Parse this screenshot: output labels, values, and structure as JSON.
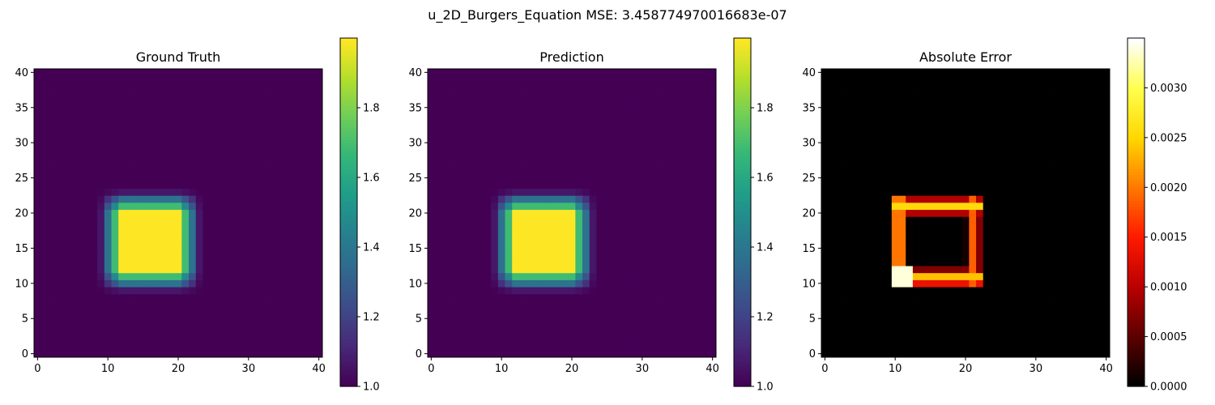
{
  "figure": {
    "suptitle": "u_2D_Burgers_Equation MSE: 3.458774970016683e-07"
  },
  "chart_data": [
    {
      "type": "heatmap",
      "title": "Ground Truth",
      "grid_size": 41,
      "origin": "lower",
      "colormap": "viridis",
      "vmin": 1.0,
      "vmax": 2.0,
      "background_value": 1.0,
      "plateau": {
        "x_range": [
          12,
          20
        ],
        "y_range": [
          12,
          20
        ],
        "value": 2.0
      },
      "ramp_width": 2,
      "x_ticks": [
        0,
        10,
        20,
        30,
        40
      ],
      "y_ticks": [
        0,
        5,
        10,
        15,
        20,
        25,
        30,
        35,
        40
      ],
      "colorbar_ticks": [
        "1.0",
        "1.2",
        "1.4",
        "1.6",
        "1.8"
      ]
    },
    {
      "type": "heatmap",
      "title": "Prediction",
      "grid_size": 41,
      "origin": "lower",
      "colormap": "viridis",
      "vmin": 1.0,
      "vmax": 2.0,
      "background_value": 1.0,
      "plateau": {
        "x_range": [
          12,
          20
        ],
        "y_range": [
          12,
          20
        ],
        "value": 2.0
      },
      "ramp_width": 2,
      "x_ticks": [
        0,
        10,
        20,
        30,
        40
      ],
      "y_ticks": [
        0,
        5,
        10,
        15,
        20,
        25,
        30,
        35,
        40
      ],
      "colorbar_ticks": [
        "1.0",
        "1.2",
        "1.4",
        "1.6",
        "1.8"
      ]
    },
    {
      "type": "heatmap",
      "title": "Absolute Error",
      "grid_size": 41,
      "origin": "lower",
      "colormap": "hot",
      "vmin": 0.0,
      "vmax": 0.0035,
      "error_ring": {
        "x_range": [
          10,
          22
        ],
        "y_range": [
          10,
          22
        ],
        "peak": 0.0034
      },
      "x_ticks": [
        0,
        10,
        20,
        30,
        40
      ],
      "y_ticks": [
        0,
        5,
        10,
        15,
        20,
        25,
        30,
        35,
        40
      ],
      "colorbar_ticks": [
        "0.0000",
        "0.0005",
        "0.0010",
        "0.0015",
        "0.0020",
        "0.0025",
        "0.0030"
      ]
    }
  ]
}
